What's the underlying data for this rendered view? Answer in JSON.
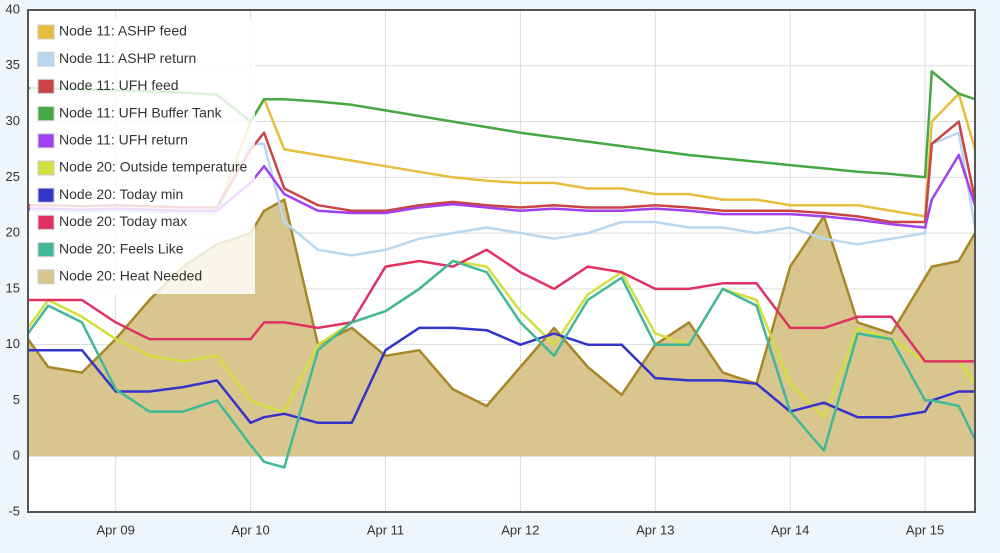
{
  "chart_data": {
    "type": "line",
    "x": [
      8.35,
      8.5,
      8.75,
      9,
      9.25,
      9.5,
      9.75,
      10,
      10.1,
      10.25,
      10.5,
      10.75,
      11,
      11.25,
      11.5,
      11.75,
      12,
      12.25,
      12.5,
      12.75,
      13,
      13.25,
      13.5,
      13.75,
      14,
      14.25,
      14.5,
      14.75,
      15,
      15.05,
      15.25,
      15.37
    ],
    "xlim": [
      8.35,
      15.37
    ],
    "xticks": [
      {
        "value": 9,
        "label": "Apr 09"
      },
      {
        "value": 10,
        "label": "Apr 10"
      },
      {
        "value": 11,
        "label": "Apr 11"
      },
      {
        "value": 12,
        "label": "Apr 12"
      },
      {
        "value": 13,
        "label": "Apr 13"
      },
      {
        "value": 14,
        "label": "Apr 14"
      },
      {
        "value": 15,
        "label": "Apr 15"
      }
    ],
    "ylim": [
      -5,
      40
    ],
    "yticks": [
      -5,
      0,
      5,
      10,
      15,
      20,
      25,
      30,
      35,
      40
    ],
    "grid": true,
    "legend": "top-left",
    "series": [
      {
        "name": "Node 11: ASHP feed",
        "color": "#e6bd3c",
        "values": [
          22.2,
          22.2,
          22.1,
          22.2,
          22.1,
          22,
          22,
          30,
          32,
          27.5,
          27,
          26.5,
          26,
          25.5,
          25,
          24.7,
          24.5,
          24.5,
          24,
          24,
          23.5,
          23.5,
          23,
          23,
          22.5,
          22.5,
          22.5,
          22,
          21.5,
          30,
          32.5,
          27.5
        ]
      },
      {
        "name": "Node 11: ASHP return",
        "color": "#b9d7f0",
        "values": [
          22,
          22,
          21.9,
          22,
          21.9,
          21.8,
          21.8,
          28,
          28,
          21,
          18.5,
          18,
          18.5,
          19.5,
          20,
          20.5,
          20,
          19.5,
          20,
          21,
          21,
          20.5,
          20.5,
          20,
          20.5,
          19.5,
          19,
          19.5,
          20,
          28,
          29,
          20.5
        ]
      },
      {
        "name": "Node 11: UFH feed",
        "color": "#c94545",
        "values": [
          22.5,
          22.5,
          22.4,
          22.5,
          22.4,
          22.3,
          22.3,
          27.5,
          29,
          24,
          22.5,
          22,
          22,
          22.5,
          22.8,
          22.5,
          22.3,
          22.5,
          22.3,
          22.3,
          22.5,
          22.3,
          22,
          22,
          22,
          21.8,
          21.5,
          21,
          21,
          28,
          30,
          23
        ]
      },
      {
        "name": "Node 11: UFH Buffer Tank",
        "color": "#45a845",
        "values": [
          33,
          33,
          32.9,
          32.8,
          32.7,
          32.6,
          32.4,
          30,
          32,
          32,
          31.8,
          31.5,
          31,
          30.5,
          30,
          29.5,
          29,
          28.6,
          28.2,
          27.8,
          27.4,
          27,
          26.7,
          26.4,
          26.1,
          25.8,
          25.5,
          25.3,
          25,
          34.5,
          32.5,
          32
        ]
      },
      {
        "name": "Node 11: UFH return",
        "color": "#a040ef",
        "values": [
          22.2,
          22.2,
          22.1,
          22.2,
          22.1,
          22,
          22,
          24.5,
          26,
          23.5,
          22,
          21.8,
          21.8,
          22.3,
          22.6,
          22.3,
          22,
          22.2,
          22,
          22,
          22.2,
          22,
          21.7,
          21.7,
          21.7,
          21.5,
          21.2,
          20.8,
          20.5,
          23,
          27,
          22.5
        ]
      },
      {
        "name": "Node 20: Outside temperature",
        "color": "#d2df3c",
        "values": [
          11.5,
          14,
          12.5,
          10.5,
          9,
          8.5,
          9,
          5,
          4.5,
          4,
          10,
          12,
          13,
          15,
          17.5,
          17,
          13,
          10,
          14.5,
          16.5,
          11,
          10,
          15,
          14,
          6.5,
          3.5,
          11.5,
          10.5,
          8.5,
          8.5,
          8.5,
          6.5
        ]
      },
      {
        "name": "Node 20: Today min",
        "color": "#3434c8",
        "values": [
          9.5,
          9.5,
          9.5,
          5.8,
          5.8,
          6.2,
          6.8,
          3,
          3.5,
          3.8,
          3,
          3,
          9.5,
          11.5,
          11.5,
          11.3,
          10,
          11,
          10,
          10,
          7,
          6.8,
          6.8,
          6.5,
          4,
          4.8,
          3.5,
          3.5,
          4,
          5,
          5.8,
          5.8
        ]
      },
      {
        "name": "Node 20: Today max",
        "color": "#e03262",
        "values": [
          14,
          14,
          14,
          12,
          10.5,
          10.5,
          10.5,
          10.5,
          12,
          12,
          11.5,
          12,
          17,
          17.5,
          17,
          18.5,
          16.5,
          15,
          17,
          16.5,
          15,
          15,
          15.5,
          15.5,
          11.5,
          11.5,
          12.5,
          12.5,
          8.5,
          8.5,
          8.5,
          8.5
        ]
      },
      {
        "name": "Node 20: Feels Like",
        "color": "#41b898",
        "values": [
          11,
          13.5,
          12,
          6,
          4,
          4,
          5,
          1,
          -0.5,
          -1,
          9.5,
          12,
          13,
          15,
          17.5,
          16.5,
          12,
          9,
          14,
          16,
          10,
          10,
          15,
          13.5,
          4,
          0.5,
          11,
          10.5,
          5,
          5,
          4.5,
          1.5
        ]
      },
      {
        "name": "Node 20: Heat Needed",
        "color": "#a8872a",
        "fill": "#d9c68f",
        "values": [
          10.5,
          8,
          7.5,
          10.5,
          14,
          17,
          19,
          20,
          22,
          23,
          10,
          11.5,
          9,
          9.5,
          6,
          4.5,
          8,
          11.5,
          8,
          5.5,
          10,
          12,
          7.5,
          6.5,
          17,
          21.5,
          12,
          11,
          16,
          17,
          17.5,
          20
        ]
      }
    ]
  }
}
